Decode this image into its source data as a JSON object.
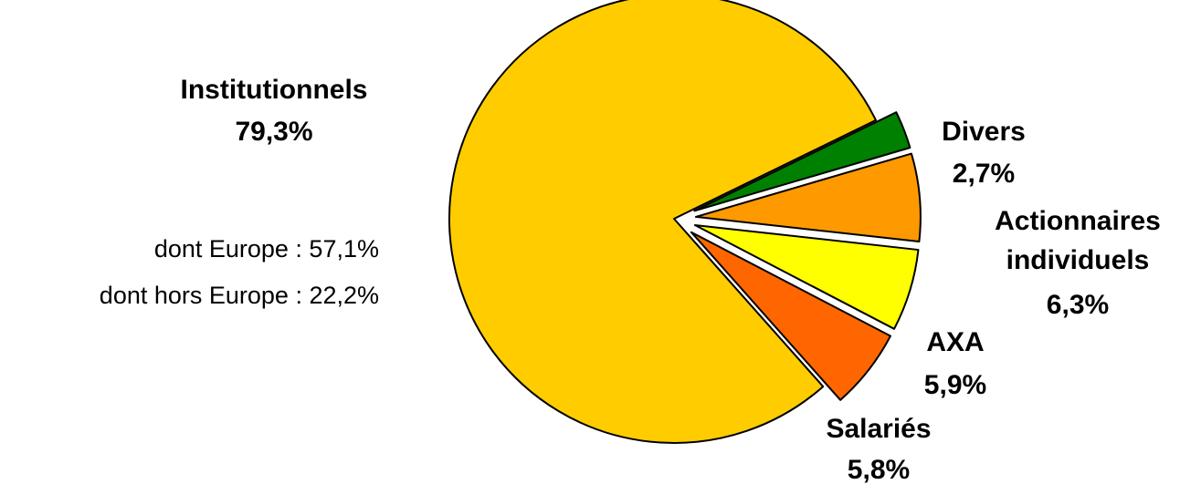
{
  "chart_data": {
    "type": "pie",
    "slices": [
      {
        "label": "Institutionnels",
        "value": 79.3,
        "value_label": "79,3%",
        "color": "#FFCC00",
        "exploded": false
      },
      {
        "label": "Divers",
        "value": 2.7,
        "value_label": "2,7%",
        "color": "#008000",
        "exploded": true
      },
      {
        "label": "Actionnaires individuels",
        "value": 6.3,
        "value_label": "6,3%",
        "color": "#FF9900",
        "exploded": true
      },
      {
        "label": "AXA",
        "value": 5.9,
        "value_label": "5,9%",
        "color": "#FFFF00",
        "exploded": true
      },
      {
        "label": "Salariés",
        "value": 5.8,
        "value_label": "5,8%",
        "color": "#FF6600",
        "exploded": true
      }
    ],
    "annotations": [
      "dont Europe : 57,1%",
      "dont hors Europe : 22,2%"
    ]
  }
}
